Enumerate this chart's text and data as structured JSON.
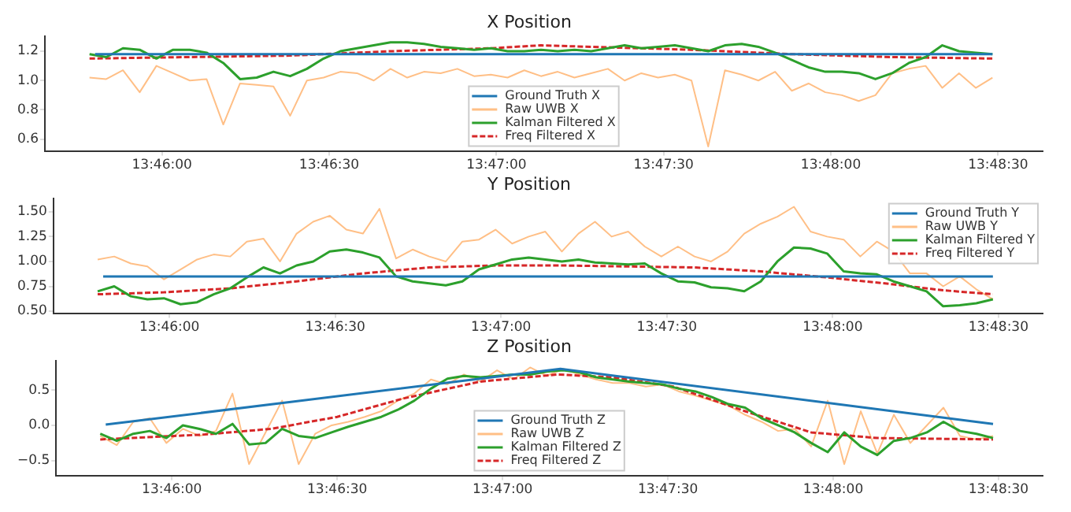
{
  "chart_data": [
    {
      "type": "line",
      "title": "X Position",
      "legend": "bottom",
      "marker": "none",
      "xlim": [
        13.760833,
        13.810556
      ],
      "ylim": [
        0.52,
        1.3
      ],
      "xticks": [
        {
          "value": 13.766667,
          "label": "13:46:00"
        },
        {
          "value": 13.775,
          "label": "13:46:30"
        },
        {
          "value": 13.783333,
          "label": "13:47:00"
        },
        {
          "value": 13.791667,
          "label": "13:47:30"
        },
        {
          "value": 13.8,
          "label": "13:48:00"
        },
        {
          "value": 13.808333,
          "label": "13:48:30"
        }
      ],
      "yticks": [
        0.6,
        0.8,
        {
          "value": 1,
          "label": "1.0"
        },
        1.2
      ],
      "x": [
        13.763056,
        13.763889,
        13.764722,
        13.765556,
        13.766389,
        13.767222,
        13.768056,
        13.768889,
        13.769722,
        13.770556,
        13.771389,
        13.772222,
        13.773056,
        13.773889,
        13.774722,
        13.775556,
        13.776389,
        13.777222,
        13.778056,
        13.778889,
        13.779722,
        13.780556,
        13.781389,
        13.782222,
        13.783056,
        13.783889,
        13.784722,
        13.785556,
        13.786389,
        13.787222,
        13.788056,
        13.788889,
        13.789722,
        13.790556,
        13.791389,
        13.792222,
        13.793056,
        13.793889,
        13.794722,
        13.795556,
        13.796389,
        13.797222,
        13.798056,
        13.798889,
        13.799722,
        13.800556,
        13.801389,
        13.802222,
        13.803056,
        13.803889,
        13.804722,
        13.805556,
        13.806389,
        13.807222,
        13.808056
      ],
      "series": [
        {
          "name": "Ground Truth X",
          "type": "line",
          "color": "#1f77b4",
          "x": [
            13.763333,
            13.808056
          ],
          "values": [
            1.18,
            1.18
          ]
        },
        {
          "name": "Raw UWB X",
          "type": "line",
          "color": "#ffbf86",
          "values": [
            1.02,
            1.01,
            1.07,
            0.92,
            1.1,
            1.05,
            1.0,
            1.01,
            0.7,
            0.98,
            0.97,
            0.96,
            0.76,
            1.0,
            1.02,
            1.06,
            1.05,
            1.0,
            1.08,
            1.02,
            1.06,
            1.05,
            1.08,
            1.03,
            1.04,
            1.02,
            1.07,
            1.03,
            1.06,
            1.02,
            1.05,
            1.08,
            1.0,
            1.05,
            1.02,
            1.04,
            1.0,
            0.55,
            1.07,
            1.04,
            1.0,
            1.06,
            0.93,
            0.98,
            0.92,
            0.9,
            0.86,
            0.9,
            1.05,
            1.08,
            1.1,
            0.95,
            1.05,
            0.95,
            1.02
          ]
        },
        {
          "name": "Kalman Filtered X",
          "type": "line",
          "color": "#2ca02c",
          "values": [
            1.18,
            1.16,
            1.22,
            1.21,
            1.15,
            1.21,
            1.21,
            1.19,
            1.12,
            1.01,
            1.02,
            1.06,
            1.03,
            1.08,
            1.15,
            1.2,
            1.22,
            1.24,
            1.26,
            1.26,
            1.25,
            1.23,
            1.22,
            1.21,
            1.22,
            1.2,
            1.2,
            1.21,
            1.2,
            1.21,
            1.2,
            1.22,
            1.24,
            1.22,
            1.23,
            1.24,
            1.22,
            1.2,
            1.24,
            1.25,
            1.23,
            1.19,
            1.14,
            1.09,
            1.06,
            1.06,
            1.05,
            1.01,
            1.05,
            1.12,
            1.16,
            1.24,
            1.2,
            1.19,
            1.18
          ]
        },
        {
          "name": "Freq Filtered X",
          "type": "line",
          "color": "#d62728",
          "line_style": "dashed",
          "x": [
            13.763056,
            13.768056,
            13.773056,
            13.778056,
            13.783056,
            13.785556,
            13.788056,
            13.793056,
            13.798056,
            13.803056,
            13.808056
          ],
          "values": [
            1.15,
            1.16,
            1.17,
            1.2,
            1.22,
            1.24,
            1.23,
            1.21,
            1.18,
            1.16,
            1.15
          ]
        }
      ]
    },
    {
      "type": "line",
      "title": "Y Position",
      "legend": "top right",
      "marker": "none",
      "xlim": [
        13.760833,
        13.810556
      ],
      "ylim": [
        0.48,
        1.63
      ],
      "xticks": [
        {
          "value": 13.766667,
          "label": "13:46:00"
        },
        {
          "value": 13.775,
          "label": "13:46:30"
        },
        {
          "value": 13.783333,
          "label": "13:47:00"
        },
        {
          "value": 13.791667,
          "label": "13:47:30"
        },
        {
          "value": 13.8,
          "label": "13:48:00"
        },
        {
          "value": 13.808333,
          "label": "13:48:30"
        }
      ],
      "yticks": [
        {
          "value": 0.5,
          "label": "0.50"
        },
        0.75,
        {
          "value": 1,
          "label": "1.00"
        },
        1.25,
        {
          "value": 1.5,
          "label": "1.50"
        }
      ],
      "x": [
        13.763056,
        13.763889,
        13.764722,
        13.765556,
        13.766389,
        13.767222,
        13.768056,
        13.768889,
        13.769722,
        13.770556,
        13.771389,
        13.772222,
        13.773056,
        13.773889,
        13.774722,
        13.775556,
        13.776389,
        13.777222,
        13.778056,
        13.778889,
        13.779722,
        13.780556,
        13.781389,
        13.782222,
        13.783056,
        13.783889,
        13.784722,
        13.785556,
        13.786389,
        13.787222,
        13.788056,
        13.788889,
        13.789722,
        13.790556,
        13.791389,
        13.792222,
        13.793056,
        13.793889,
        13.794722,
        13.795556,
        13.796389,
        13.797222,
        13.798056,
        13.798889,
        13.799722,
        13.800556,
        13.801389,
        13.802222,
        13.803056,
        13.803889,
        13.804722,
        13.805556,
        13.806389,
        13.807222,
        13.808056
      ],
      "series": [
        {
          "name": "Ground Truth Y",
          "type": "line",
          "color": "#1f77b4",
          "x": [
            13.763333,
            13.808056
          ],
          "values": [
            0.85,
            0.85
          ]
        },
        {
          "name": "Raw UWB Y",
          "type": "line",
          "color": "#ffbf86",
          "values": [
            1.02,
            1.05,
            0.98,
            0.95,
            0.82,
            0.92,
            1.02,
            1.07,
            1.05,
            1.2,
            1.23,
            1.0,
            1.28,
            1.4,
            1.46,
            1.32,
            1.28,
            1.53,
            1.03,
            1.12,
            1.05,
            1.0,
            1.2,
            1.22,
            1.32,
            1.18,
            1.25,
            1.3,
            1.1,
            1.28,
            1.4,
            1.25,
            1.3,
            1.15,
            1.05,
            1.15,
            1.05,
            1.0,
            1.1,
            1.28,
            1.38,
            1.45,
            1.55,
            1.3,
            1.25,
            1.22,
            1.05,
            1.2,
            1.1,
            0.88,
            0.88,
            0.75,
            0.85,
            0.72,
            0.62
          ]
        },
        {
          "name": "Kalman Filtered Y",
          "type": "line",
          "color": "#2ca02c",
          "values": [
            0.7,
            0.75,
            0.65,
            0.62,
            0.63,
            0.57,
            0.59,
            0.67,
            0.73,
            0.84,
            0.94,
            0.88,
            0.96,
            1.0,
            1.1,
            1.12,
            1.09,
            1.04,
            0.85,
            0.8,
            0.78,
            0.76,
            0.8,
            0.92,
            0.97,
            1.02,
            1.04,
            1.02,
            1.0,
            1.02,
            0.99,
            0.98,
            0.97,
            0.98,
            0.88,
            0.8,
            0.79,
            0.74,
            0.73,
            0.7,
            0.8,
            1.0,
            1.14,
            1.13,
            1.08,
            0.9,
            0.88,
            0.87,
            0.8,
            0.75,
            0.7,
            0.55,
            0.56,
            0.58,
            0.62
          ]
        },
        {
          "name": "Freq Filtered Y",
          "type": "line",
          "color": "#d62728",
          "line_style": "dashed",
          "x": [
            13.763056,
            13.766389,
            13.769722,
            13.773056,
            13.776389,
            13.779722,
            13.783056,
            13.786389,
            13.789722,
            13.793056,
            13.796389,
            13.799722,
            13.803056,
            13.805556,
            13.808056
          ],
          "values": [
            0.67,
            0.69,
            0.73,
            0.8,
            0.88,
            0.94,
            0.96,
            0.96,
            0.95,
            0.94,
            0.9,
            0.84,
            0.77,
            0.71,
            0.67
          ]
        }
      ]
    },
    {
      "type": "line",
      "title": "Z Position",
      "legend": "bottom",
      "marker": "none",
      "xlim": [
        13.760833,
        13.810556
      ],
      "ylim": [
        -0.71,
        0.91
      ],
      "xticks": [
        {
          "value": 13.766667,
          "label": "13:46:00"
        },
        {
          "value": 13.775,
          "label": "13:46:30"
        },
        {
          "value": 13.783333,
          "label": "13:47:00"
        },
        {
          "value": 13.791667,
          "label": "13:47:30"
        },
        {
          "value": 13.8,
          "label": "13:48:00"
        },
        {
          "value": 13.808333,
          "label": "13:48:30"
        }
      ],
      "yticks": [
        {
          "value": -0.5,
          "label": "−0.5"
        },
        {
          "value": 0,
          "label": "0.0"
        },
        0.5
      ],
      "x": [
        13.763056,
        13.763889,
        13.764722,
        13.765556,
        13.766389,
        13.767222,
        13.768056,
        13.768889,
        13.769722,
        13.770556,
        13.771389,
        13.772222,
        13.773056,
        13.773889,
        13.774722,
        13.775556,
        13.776389,
        13.777222,
        13.778056,
        13.778889,
        13.779722,
        13.780556,
        13.781389,
        13.782222,
        13.783056,
        13.783889,
        13.784722,
        13.785556,
        13.786389,
        13.787222,
        13.788056,
        13.788889,
        13.789722,
        13.790556,
        13.791389,
        13.792222,
        13.793056,
        13.793889,
        13.794722,
        13.795556,
        13.796389,
        13.797222,
        13.798056,
        13.798889,
        13.799722,
        13.800556,
        13.801389,
        13.802222,
        13.803056,
        13.803889,
        13.804722,
        13.805556,
        13.806389,
        13.807222,
        13.808056
      ],
      "series": [
        {
          "name": "Ground Truth Z",
          "type": "line",
          "color": "#1f77b4",
          "x": [
            13.763333,
            13.78625,
            13.808056
          ],
          "values": [
            0.01,
            0.8,
            0.02
          ]
        },
        {
          "name": "Raw UWB Z",
          "type": "line",
          "color": "#ffbf86",
          "values": [
            -0.15,
            -0.28,
            0.05,
            0.1,
            -0.25,
            -0.05,
            -0.15,
            -0.08,
            0.45,
            -0.55,
            -0.1,
            0.35,
            -0.55,
            -0.12,
            0.0,
            0.05,
            0.12,
            0.2,
            0.35,
            0.45,
            0.65,
            0.58,
            0.72,
            0.62,
            0.78,
            0.65,
            0.82,
            0.7,
            0.8,
            0.72,
            0.65,
            0.6,
            0.6,
            0.55,
            0.58,
            0.48,
            0.42,
            0.35,
            0.28,
            0.15,
            0.05,
            -0.08,
            -0.05,
            -0.3,
            0.35,
            -0.55,
            0.2,
            -0.4,
            0.15,
            -0.25,
            0.0,
            0.25,
            -0.15,
            -0.2,
            -0.15
          ]
        },
        {
          "name": "Kalman Filtered Z",
          "type": "line",
          "color": "#2ca02c",
          "values": [
            -0.12,
            -0.22,
            -0.12,
            -0.08,
            -0.18,
            0.0,
            -0.05,
            -0.12,
            0.02,
            -0.27,
            -0.25,
            -0.05,
            -0.15,
            -0.18,
            -0.1,
            -0.02,
            0.05,
            0.12,
            0.22,
            0.35,
            0.52,
            0.66,
            0.7,
            0.68,
            0.7,
            0.72,
            0.72,
            0.76,
            0.78,
            0.75,
            0.68,
            0.65,
            0.62,
            0.6,
            0.58,
            0.52,
            0.48,
            0.4,
            0.3,
            0.25,
            0.1,
            0.0,
            -0.1,
            -0.25,
            -0.38,
            -0.1,
            -0.3,
            -0.42,
            -0.22,
            -0.18,
            -0.1,
            0.05,
            -0.08,
            -0.12,
            -0.18
          ]
        },
        {
          "name": "Freq Filtered Z",
          "type": "line",
          "color": "#d62728",
          "line_style": "dashed",
          "x": [
            13.763056,
            13.768333,
            13.771667,
            13.775,
            13.778333,
            13.782222,
            13.786111,
            13.788889,
            13.791944,
            13.795556,
            13.798889,
            13.802222,
            13.808056
          ],
          "values": [
            -0.2,
            -0.13,
            -0.05,
            0.12,
            0.38,
            0.62,
            0.72,
            0.68,
            0.55,
            0.2,
            -0.1,
            -0.18,
            -0.2
          ]
        }
      ]
    }
  ]
}
